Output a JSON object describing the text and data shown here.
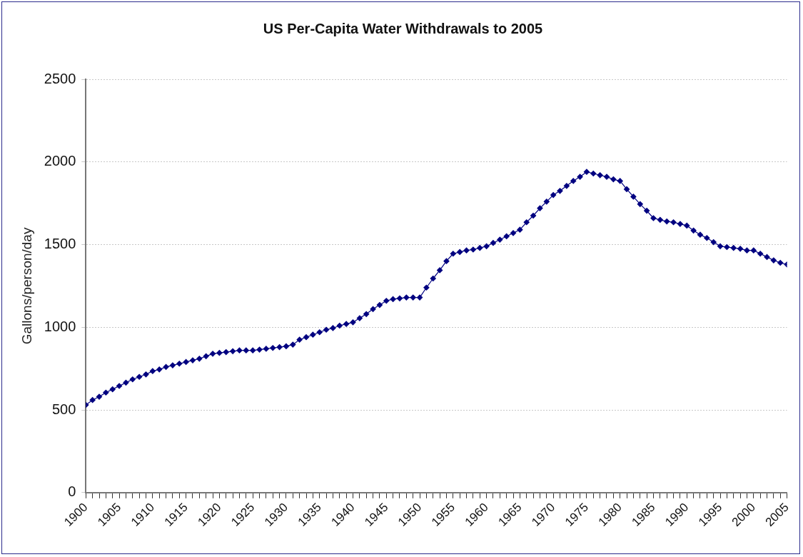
{
  "chart_data": {
    "type": "line",
    "title": "US Per-Capita Water Withdrawals to 2005",
    "ylabel": "Gallons/person/day",
    "x": [
      1900,
      1901,
      1902,
      1903,
      1904,
      1905,
      1906,
      1907,
      1908,
      1909,
      1910,
      1911,
      1912,
      1913,
      1914,
      1915,
      1916,
      1917,
      1918,
      1919,
      1920,
      1921,
      1922,
      1923,
      1924,
      1925,
      1926,
      1927,
      1928,
      1929,
      1930,
      1931,
      1932,
      1933,
      1934,
      1935,
      1936,
      1937,
      1938,
      1939,
      1940,
      1941,
      1942,
      1943,
      1944,
      1945,
      1946,
      1947,
      1948,
      1949,
      1950,
      1951,
      1952,
      1953,
      1954,
      1955,
      1956,
      1957,
      1958,
      1959,
      1960,
      1961,
      1962,
      1963,
      1964,
      1965,
      1966,
      1967,
      1968,
      1969,
      1970,
      1971,
      1972,
      1973,
      1974,
      1975,
      1976,
      1977,
      1978,
      1979,
      1980,
      1981,
      1982,
      1983,
      1984,
      1985,
      1986,
      1987,
      1988,
      1989,
      1990,
      1991,
      1992,
      1993,
      1994,
      1995,
      1996,
      1997,
      1998,
      1999,
      2000,
      2001,
      2002,
      2003,
      2004,
      2005
    ],
    "series": [
      {
        "color": "#000080",
        "values": [
          530,
          560,
          580,
          605,
          625,
          645,
          665,
          685,
          700,
          715,
          735,
          745,
          760,
          770,
          780,
          790,
          800,
          810,
          825,
          840,
          845,
          850,
          855,
          860,
          860,
          860,
          865,
          870,
          875,
          880,
          885,
          895,
          925,
          940,
          955,
          970,
          985,
          995,
          1010,
          1020,
          1030,
          1055,
          1080,
          1110,
          1135,
          1160,
          1170,
          1175,
          1180,
          1180,
          1180,
          1240,
          1295,
          1345,
          1400,
          1445,
          1455,
          1465,
          1470,
          1480,
          1490,
          1510,
          1530,
          1550,
          1570,
          1590,
          1635,
          1675,
          1720,
          1760,
          1800,
          1825,
          1855,
          1885,
          1910,
          1940,
          1930,
          1920,
          1910,
          1895,
          1885,
          1835,
          1790,
          1745,
          1705,
          1660,
          1650,
          1640,
          1635,
          1625,
          1615,
          1585,
          1560,
          1540,
          1515,
          1490,
          1485,
          1480,
          1475,
          1465,
          1465,
          1445,
          1425,
          1405,
          1390,
          1380
        ]
      }
    ],
    "xlim": [
      1900,
      2005
    ],
    "xticks": [
      1900,
      {
        "value": 1901,
        "label": null
      },
      {
        "value": 1902,
        "label": null
      },
      {
        "value": 1903,
        "label": null
      },
      {
        "value": 1904,
        "label": null
      },
      1905,
      {
        "value": 1906,
        "label": null
      },
      {
        "value": 1907,
        "label": null
      },
      {
        "value": 1908,
        "label": null
      },
      {
        "value": 1909,
        "label": null
      },
      1910,
      {
        "value": 1911,
        "label": null
      },
      {
        "value": 1912,
        "label": null
      },
      {
        "value": 1913,
        "label": null
      },
      {
        "value": 1914,
        "label": null
      },
      1915,
      {
        "value": 1916,
        "label": null
      },
      {
        "value": 1917,
        "label": null
      },
      {
        "value": 1918,
        "label": null
      },
      {
        "value": 1919,
        "label": null
      },
      1920,
      {
        "value": 1921,
        "label": null
      },
      {
        "value": 1922,
        "label": null
      },
      {
        "value": 1923,
        "label": null
      },
      {
        "value": 1924,
        "label": null
      },
      1925,
      {
        "value": 1926,
        "label": null
      },
      {
        "value": 1927,
        "label": null
      },
      {
        "value": 1928,
        "label": null
      },
      {
        "value": 1929,
        "label": null
      },
      1930,
      {
        "value": 1931,
        "label": null
      },
      {
        "value": 1932,
        "label": null
      },
      {
        "value": 1933,
        "label": null
      },
      {
        "value": 1934,
        "label": null
      },
      1935,
      {
        "value": 1936,
        "label": null
      },
      {
        "value": 1937,
        "label": null
      },
      {
        "value": 1938,
        "label": null
      },
      {
        "value": 1939,
        "label": null
      },
      1940,
      {
        "value": 1941,
        "label": null
      },
      {
        "value": 1942,
        "label": null
      },
      {
        "value": 1943,
        "label": null
      },
      {
        "value": 1944,
        "label": null
      },
      1945,
      {
        "value": 1946,
        "label": null
      },
      {
        "value": 1947,
        "label": null
      },
      {
        "value": 1948,
        "label": null
      },
      {
        "value": 1949,
        "label": null
      },
      1950,
      {
        "value": 1951,
        "label": null
      },
      {
        "value": 1952,
        "label": null
      },
      {
        "value": 1953,
        "label": null
      },
      {
        "value": 1954,
        "label": null
      },
      1955,
      {
        "value": 1956,
        "label": null
      },
      {
        "value": 1957,
        "label": null
      },
      {
        "value": 1958,
        "label": null
      },
      {
        "value": 1959,
        "label": null
      },
      1960,
      {
        "value": 1961,
        "label": null
      },
      {
        "value": 1962,
        "label": null
      },
      {
        "value": 1963,
        "label": null
      },
      {
        "value": 1964,
        "label": null
      },
      1965,
      {
        "value": 1966,
        "label": null
      },
      {
        "value": 1967,
        "label": null
      },
      {
        "value": 1968,
        "label": null
      },
      {
        "value": 1969,
        "label": null
      },
      1970,
      {
        "value": 1971,
        "label": null
      },
      {
        "value": 1972,
        "label": null
      },
      {
        "value": 1973,
        "label": null
      },
      {
        "value": 1974,
        "label": null
      },
      1975,
      {
        "value": 1976,
        "label": null
      },
      {
        "value": 1977,
        "label": null
      },
      {
        "value": 1978,
        "label": null
      },
      {
        "value": 1979,
        "label": null
      },
      1980,
      {
        "value": 1981,
        "label": null
      },
      {
        "value": 1982,
        "label": null
      },
      {
        "value": 1983,
        "label": null
      },
      {
        "value": 1984,
        "label": null
      },
      1985,
      {
        "value": 1986,
        "label": null
      },
      {
        "value": 1987,
        "label": null
      },
      {
        "value": 1988,
        "label": null
      },
      {
        "value": 1989,
        "label": null
      },
      1990,
      {
        "value": 1991,
        "label": null
      },
      {
        "value": 1992,
        "label": null
      },
      {
        "value": 1993,
        "label": null
      },
      {
        "value": 1994,
        "label": null
      },
      1995,
      {
        "value": 1996,
        "label": null
      },
      {
        "value": 1997,
        "label": null
      },
      {
        "value": 1998,
        "label": null
      },
      {
        "value": 1999,
        "label": null
      },
      2000,
      {
        "value": 2001,
        "label": null
      },
      {
        "value": 2002,
        "label": null
      },
      {
        "value": 2003,
        "label": null
      },
      {
        "value": 2004,
        "label": null
      },
      2005
    ],
    "ylim": [
      0,
      2500
    ],
    "yticks": [
      0,
      500,
      1000,
      1500,
      2000,
      2500
    ],
    "grid": "y",
    "legend": false,
    "marker": "diamond",
    "line_style": "solid"
  }
}
